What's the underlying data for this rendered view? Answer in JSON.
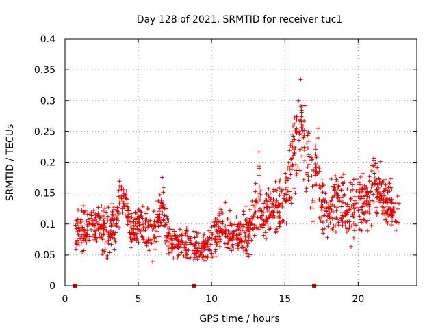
{
  "chart_data": {
    "type": "scatter",
    "title": "Day 128 of 2021, SRMTID for receiver tuc1",
    "xlabel": "GPS time / hours",
    "ylabel": "SRMTID / TECUs",
    "xlim": [
      0,
      24
    ],
    "ylim": [
      0,
      0.4
    ],
    "x_ticks": [
      0,
      5,
      10,
      15,
      20
    ],
    "y_ticks": [
      0,
      0.05,
      0.1,
      0.15,
      0.2,
      0.25,
      0.3,
      0.35,
      0.4
    ],
    "grid": true,
    "marker": "+",
    "series_color": "#e00000",
    "series": [
      {
        "name": "SRMTID",
        "note": "approximate envelope read off the plot; dense point cloud",
        "x": [
          0.7,
          1.0,
          1.5,
          2.0,
          2.5,
          3.0,
          3.5,
          3.8,
          4.0,
          4.5,
          5.0,
          5.5,
          6.0,
          6.5,
          6.7,
          7.0,
          7.5,
          8.0,
          8.5,
          9.0,
          9.5,
          10.0,
          10.5,
          11.0,
          11.5,
          12.0,
          12.5,
          13.0,
          13.3,
          13.5,
          14.0,
          14.5,
          15.0,
          15.3,
          15.7,
          16.0,
          16.2,
          16.5,
          17.0,
          17.2,
          17.5,
          18.0,
          18.5,
          19.0,
          19.5,
          20.0,
          20.5,
          21.0,
          21.5,
          22.0,
          22.5,
          22.8
        ],
        "y_mid": [
          0.08,
          0.1,
          0.09,
          0.1,
          0.09,
          0.09,
          0.1,
          0.15,
          0.14,
          0.09,
          0.1,
          0.09,
          0.08,
          0.11,
          0.13,
          0.08,
          0.07,
          0.07,
          0.06,
          0.06,
          0.06,
          0.07,
          0.09,
          0.09,
          0.08,
          0.08,
          0.09,
          0.12,
          0.15,
          0.11,
          0.12,
          0.12,
          0.13,
          0.19,
          0.23,
          0.26,
          0.24,
          0.21,
          0.16,
          0.2,
          0.13,
          0.12,
          0.14,
          0.13,
          0.13,
          0.14,
          0.13,
          0.17,
          0.15,
          0.13,
          0.12,
          0.12
        ],
        "y_spread": [
          0.03,
          0.05,
          0.04,
          0.04,
          0.04,
          0.05,
          0.04,
          0.04,
          0.04,
          0.03,
          0.04,
          0.04,
          0.04,
          0.04,
          0.06,
          0.03,
          0.03,
          0.03,
          0.03,
          0.03,
          0.03,
          0.03,
          0.04,
          0.04,
          0.03,
          0.03,
          0.04,
          0.05,
          0.08,
          0.04,
          0.04,
          0.05,
          0.05,
          0.07,
          0.1,
          0.1,
          0.08,
          0.06,
          0.07,
          0.1,
          0.05,
          0.04,
          0.06,
          0.05,
          0.06,
          0.05,
          0.05,
          0.07,
          0.06,
          0.05,
          0.04,
          0.04
        ]
      }
    ],
    "gap_markers": {
      "name": "data gaps",
      "x": [
        0.7,
        8.8,
        17.0
      ],
      "y": 0
    }
  }
}
